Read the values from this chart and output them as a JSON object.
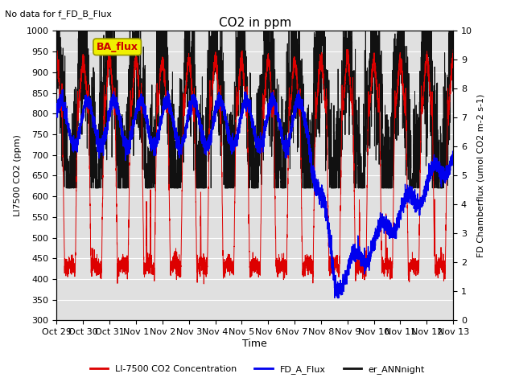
{
  "title": "CO2 in ppm",
  "subtitle": "No data for f_FD_B_Flux",
  "ylabel_left": "LI7500 CO2 (ppm)",
  "ylabel_right": "FD Chamberflux (umol CO2 m-2 s-1)",
  "xlabel": "Time",
  "ylim_left": [
    300,
    1000
  ],
  "ylim_right": [
    0.0,
    10.0
  ],
  "yticks_left": [
    300,
    350,
    400,
    450,
    500,
    550,
    600,
    650,
    700,
    750,
    800,
    850,
    900,
    950,
    1000
  ],
  "yticks_right": [
    0.0,
    1.0,
    2.0,
    3.0,
    4.0,
    5.0,
    6.0,
    7.0,
    8.0,
    9.0,
    10.0
  ],
  "xtick_labels": [
    "Oct 29",
    "Oct 30",
    "Oct 31",
    "Nov 1",
    "Nov 2",
    "Nov 3",
    "Nov 4",
    "Nov 5",
    "Nov 6",
    "Nov 7",
    "Nov 8",
    "Nov 9",
    "Nov 10",
    "Nov 11",
    "Nov 12",
    "Nov 13"
  ],
  "color_red": "#dd0000",
  "color_blue": "#0000ee",
  "color_black": "#111111",
  "legend_labels": [
    "LI-7500 CO2 Concentration",
    "FD_A_Flux",
    "er_ANNnight"
  ],
  "ba_flux_box_color": "#f0f000",
  "ba_flux_text_color": "#cc0000",
  "bg_color": "#e0e0e0",
  "grid_color": "#ffffff"
}
